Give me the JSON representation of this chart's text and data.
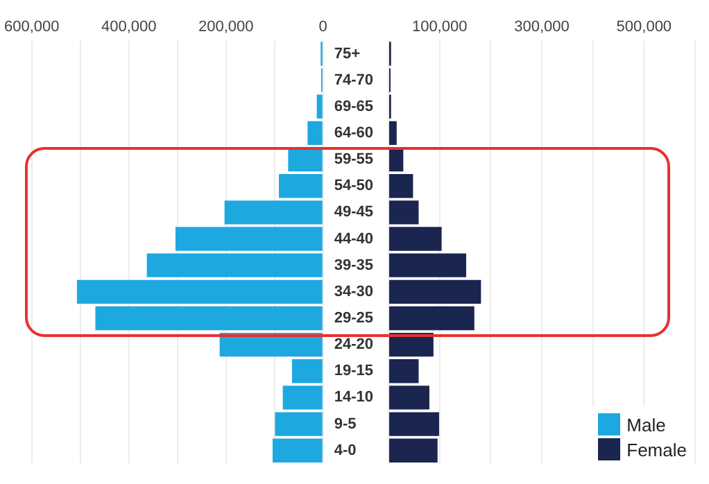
{
  "chart_data": [
    {
      "type": "bar",
      "orientation": "horizontal",
      "categories": [
        "75+",
        "74-70",
        "69-65",
        "64-60",
        "59-55",
        "54-50",
        "49-45",
        "44-40",
        "39-35",
        "34-30",
        "29-25",
        "24-20",
        "19-15",
        "14-10",
        "9-5",
        "4-0"
      ],
      "series": [
        {
          "name": "Male",
          "color": "#1ea8e0",
          "values": [
            5000,
            4000,
            13000,
            32000,
            72000,
            91000,
            203000,
            304000,
            363000,
            507000,
            469000,
            213000,
            64000,
            83000,
            99000,
            104000
          ]
        }
      ],
      "xlim": [
        600000,
        0
      ],
      "xticks": [
        {
          "value": 600000,
          "label": "600,000"
        },
        {
          "value": 500000,
          "label": null
        },
        {
          "value": 400000,
          "label": "400,000"
        },
        {
          "value": 300000,
          "label": null
        },
        {
          "value": 200000,
          "label": "200,000"
        },
        {
          "value": 100000,
          "label": null
        },
        {
          "value": 0,
          "label": "0"
        }
      ],
      "grid": "x"
    },
    {
      "type": "bar",
      "orientation": "horizontal",
      "series": [
        {
          "name": "Female",
          "color": "#1a2550",
          "values": [
            5000,
            4000,
            5000,
            16000,
            29000,
            48000,
            59000,
            104000,
            152000,
            181000,
            168000,
            88000,
            59000,
            80000,
            99000,
            96000
          ]
        }
      ],
      "xlim": [
        0,
        600000
      ],
      "xticks": [
        {
          "value": 0,
          "label": null
        },
        {
          "value": 100000,
          "label": "100,000"
        },
        {
          "value": 200000,
          "label": null
        },
        {
          "value": 300000,
          "label": "300,000"
        },
        {
          "value": 400000,
          "label": null
        },
        {
          "value": 500000,
          "label": "500,000"
        },
        {
          "value": 600000,
          "label": null
        }
      ],
      "grid": "x",
      "tick_labels": "x",
      "legend": "bottom right"
    }
  ]
}
